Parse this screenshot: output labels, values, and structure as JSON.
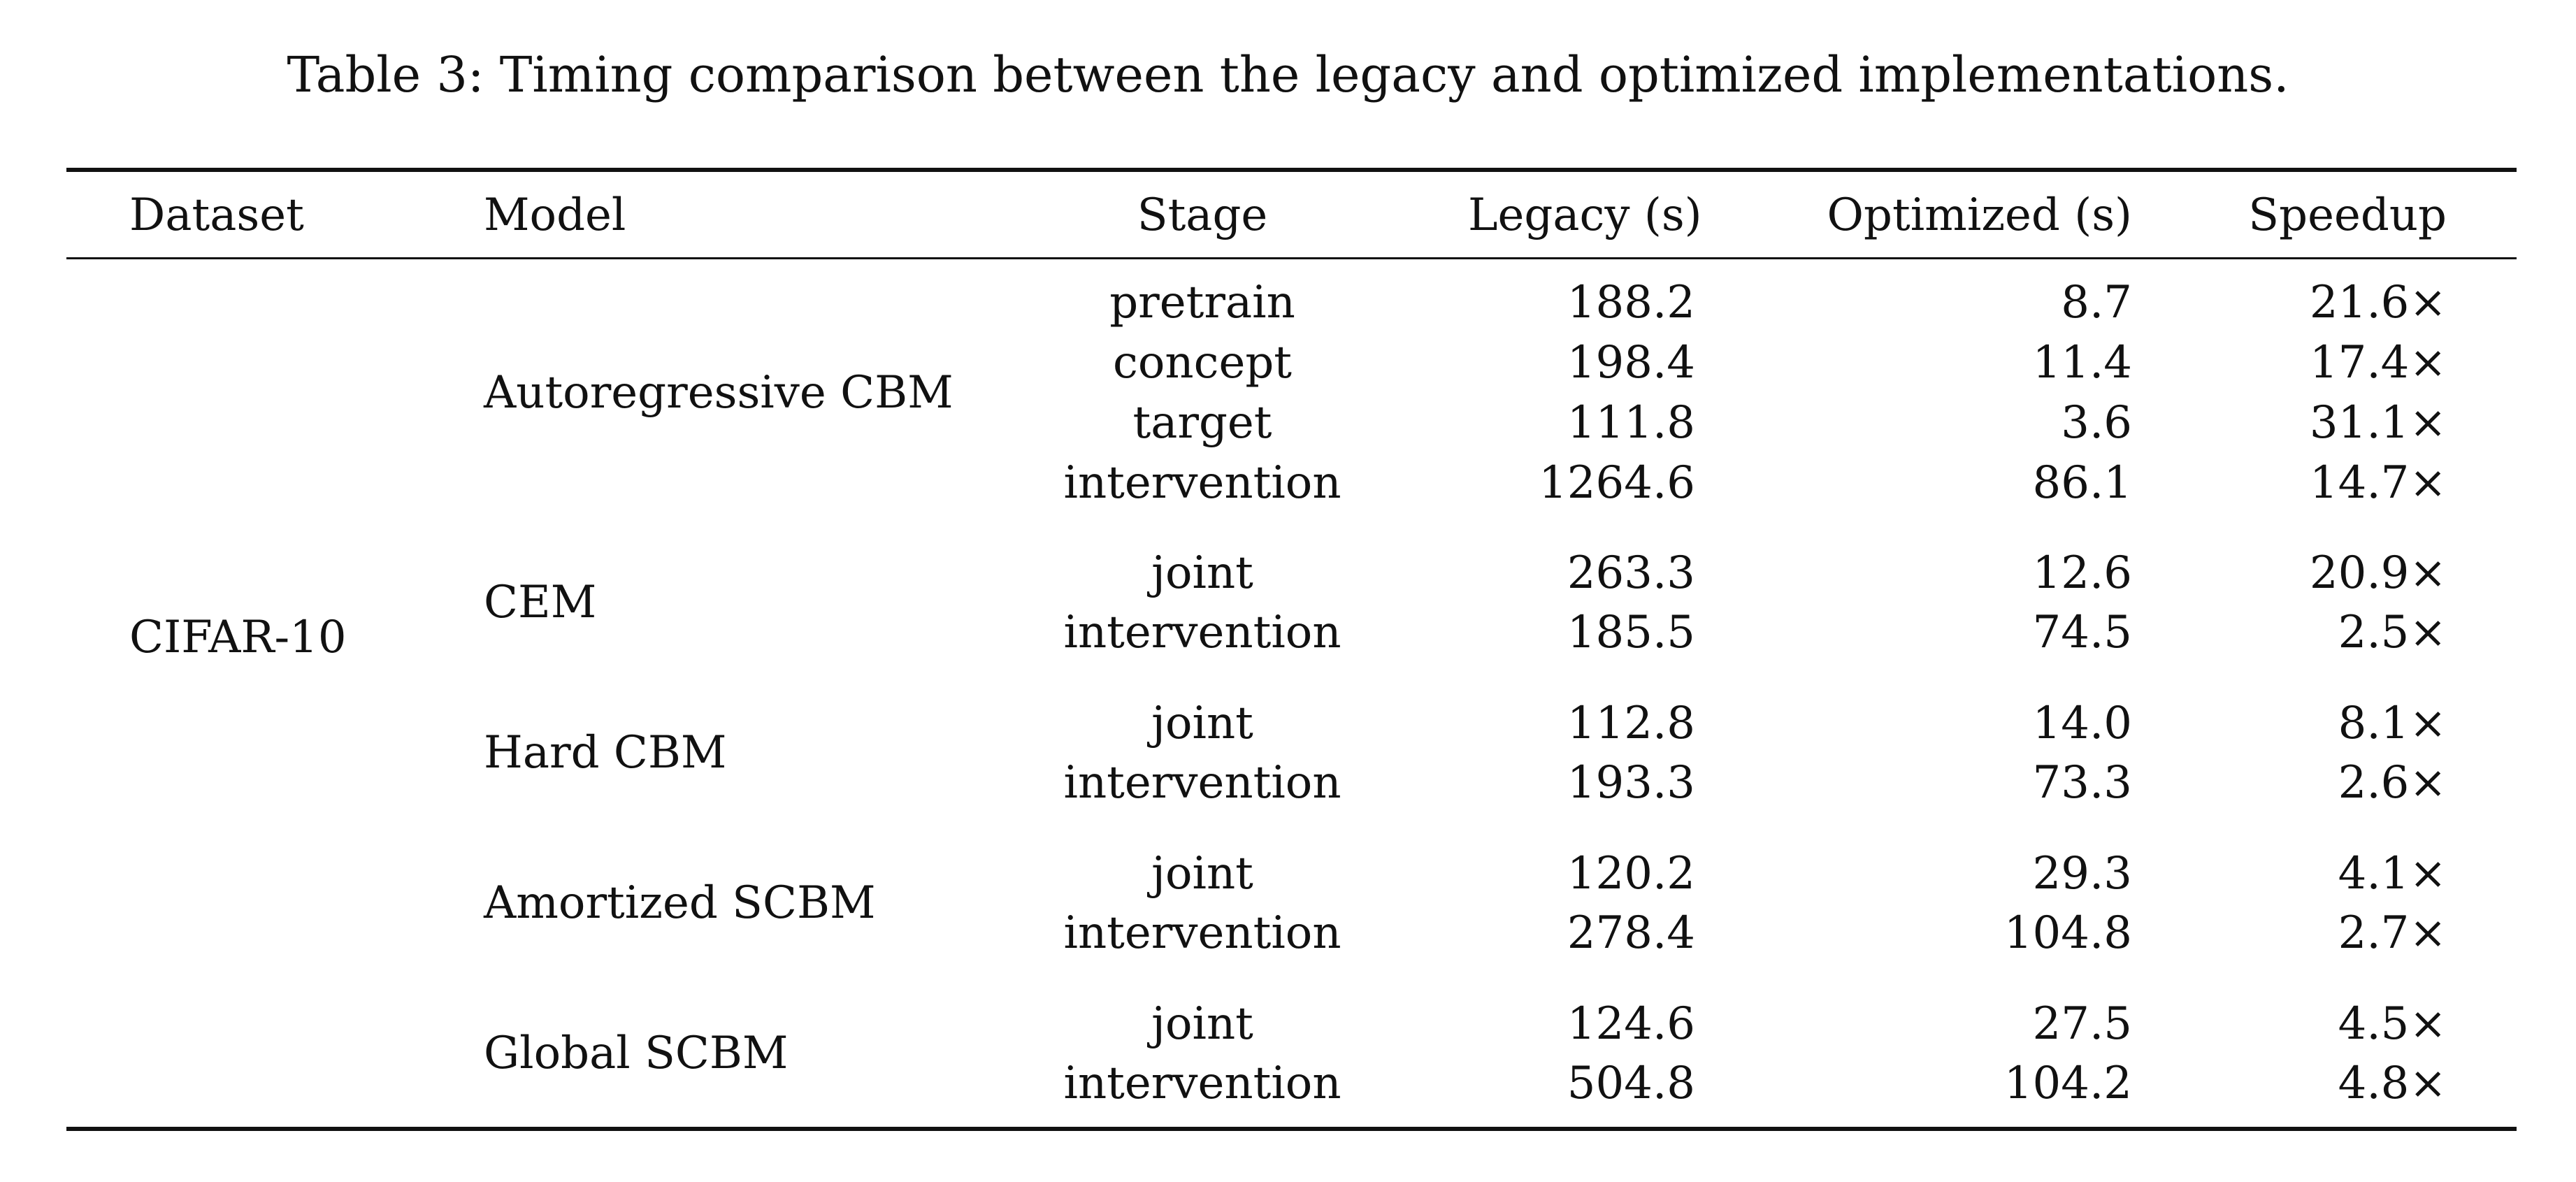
{
  "caption": "Table 3: Timing comparison between the legacy and optimized implementations.",
  "headers": {
    "dataset": "Dataset",
    "model": "Model",
    "stage": "Stage",
    "legacy": "Legacy (s)",
    "optimized": "Optimized (s)",
    "speedup": "Speedup"
  },
  "dataset": "CIFAR-10",
  "groups": [
    {
      "model": "Autoregressive CBM",
      "rows": [
        {
          "stage": "pretrain",
          "legacy": "188.2",
          "optimized": "8.7",
          "speedup": "21.6×"
        },
        {
          "stage": "concept",
          "legacy": "198.4",
          "optimized": "11.4",
          "speedup": "17.4×"
        },
        {
          "stage": "target",
          "legacy": "111.8",
          "optimized": "3.6",
          "speedup": "31.1×"
        },
        {
          "stage": "intervention",
          "legacy": "1264.6",
          "optimized": "86.1",
          "speedup": "14.7×"
        }
      ]
    },
    {
      "model": "CEM",
      "rows": [
        {
          "stage": "joint",
          "legacy": "263.3",
          "optimized": "12.6",
          "speedup": "20.9×"
        },
        {
          "stage": "intervention",
          "legacy": "185.5",
          "optimized": "74.5",
          "speedup": "2.5×"
        }
      ]
    },
    {
      "model": "Hard CBM",
      "rows": [
        {
          "stage": "joint",
          "legacy": "112.8",
          "optimized": "14.0",
          "speedup": "8.1×"
        },
        {
          "stage": "intervention",
          "legacy": "193.3",
          "optimized": "73.3",
          "speedup": "2.6×"
        }
      ]
    },
    {
      "model": "Amortized SCBM",
      "rows": [
        {
          "stage": "joint",
          "legacy": "120.2",
          "optimized": "29.3",
          "speedup": "4.1×"
        },
        {
          "stage": "intervention",
          "legacy": "278.4",
          "optimized": "104.8",
          "speedup": "2.7×"
        }
      ]
    },
    {
      "model": "Global SCBM",
      "rows": [
        {
          "stage": "joint",
          "legacy": "124.6",
          "optimized": "27.5",
          "speedup": "4.5×"
        },
        {
          "stage": "intervention",
          "legacy": "504.8",
          "optimized": "104.2",
          "speedup": "4.8×"
        }
      ]
    }
  ]
}
